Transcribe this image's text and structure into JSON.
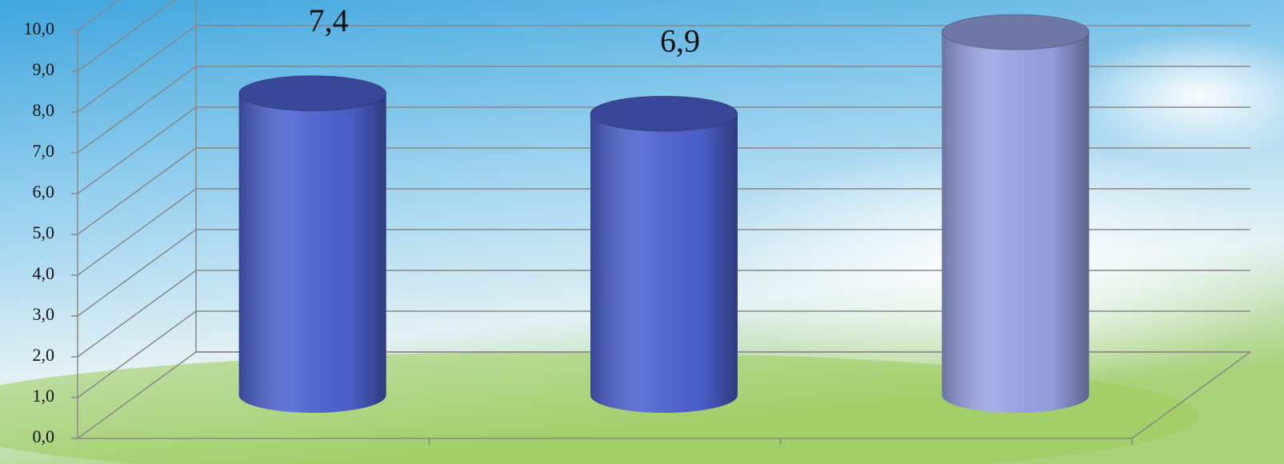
{
  "chart_data": {
    "type": "bar",
    "shape": "cylinder",
    "categories": [
      null,
      null,
      null
    ],
    "values": [
      7.4,
      6.9,
      8.9
    ],
    "value_labels": [
      "7,4",
      "6,9",
      null
    ],
    "colors": [
      "#4e63d2",
      "#4e63d2",
      "#9aa5e6"
    ],
    "ylim": [
      0,
      10
    ],
    "yticks": [
      {
        "value": 0,
        "label": "0,0"
      },
      {
        "value": 1,
        "label": "1,0"
      },
      {
        "value": 2,
        "label": "2,0"
      },
      {
        "value": 3,
        "label": "3,0"
      },
      {
        "value": 4,
        "label": "4,0"
      },
      {
        "value": 5,
        "label": "5,0"
      },
      {
        "value": 6,
        "label": "6,0"
      },
      {
        "value": 7,
        "label": "7,0"
      },
      {
        "value": 8,
        "label": "8,0"
      },
      {
        "value": 9,
        "label": "9,0"
      },
      {
        "value": 10,
        "label": "10,0"
      }
    ],
    "grid": true
  }
}
